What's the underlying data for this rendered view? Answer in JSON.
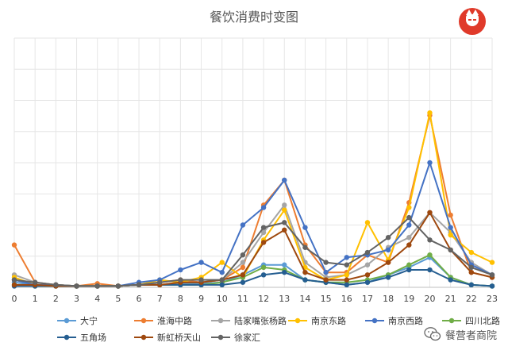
{
  "chart_data": {
    "type": "line",
    "title": "餐饮消费时变图",
    "x": [
      0,
      1,
      2,
      3,
      4,
      5,
      6,
      7,
      8,
      9,
      10,
      11,
      12,
      13,
      14,
      15,
      16,
      17,
      18,
      19,
      20,
      21,
      22,
      23
    ],
    "ylim": [
      0,
      100
    ],
    "grid": true,
    "legend_position": "bottom",
    "series": [
      {
        "name": "大宁",
        "color": "#5b9bd5",
        "values": [
          2,
          1,
          1,
          0.5,
          0.5,
          0.5,
          1,
          1,
          1.5,
          1.5,
          2,
          5,
          9,
          9,
          3,
          2,
          1,
          2,
          5,
          8,
          12,
          4,
          1,
          0.5
        ]
      },
      {
        "name": "淮海中路",
        "color": "#ed7d31",
        "values": [
          17,
          2,
          1,
          0.5,
          1.5,
          0.5,
          1,
          2,
          3,
          2,
          3,
          8,
          33,
          43,
          17,
          6,
          6,
          13,
          10,
          34,
          69,
          29,
          6,
          4
        ]
      },
      {
        "name": "陆家嘴张杨路",
        "color": "#a5a5a5",
        "values": [
          5,
          2,
          1,
          0.5,
          0.5,
          0.5,
          1,
          1,
          2,
          2,
          3,
          10,
          22,
          33,
          10,
          4,
          5,
          9,
          16,
          20,
          30,
          22,
          10,
          5
        ]
      },
      {
        "name": "南京东路",
        "color": "#ffc000",
        "values": [
          4,
          1,
          1,
          0.5,
          0.5,
          0.5,
          1,
          3,
          2,
          4,
          10,
          4,
          19,
          31,
          8,
          3,
          5,
          26,
          11,
          32,
          70,
          21,
          14,
          10
        ]
      },
      {
        "name": "南京西路",
        "color": "#4472c4",
        "values": [
          3,
          1,
          1,
          0.5,
          0.5,
          0.5,
          2,
          3,
          7,
          10,
          6,
          25,
          32,
          43,
          24,
          6,
          12,
          13,
          15,
          25,
          50,
          24,
          9,
          5
        ]
      },
      {
        "name": "四川北路",
        "color": "#70ad47",
        "values": [
          1,
          0.5,
          0.5,
          0.5,
          0.5,
          0.5,
          1,
          1,
          1,
          1,
          2,
          4,
          8,
          7,
          3,
          2,
          2,
          3,
          5,
          9,
          13,
          4,
          1,
          0.5
        ]
      },
      {
        "name": "五角场",
        "color": "#255e91",
        "values": [
          0.5,
          0.5,
          0.5,
          0.5,
          0.5,
          0.5,
          1,
          1,
          1,
          1,
          1,
          2,
          5,
          6,
          3,
          2,
          1,
          2,
          4,
          7,
          7,
          3,
          1,
          0.5
        ]
      },
      {
        "name": "新虹桥天山",
        "color": "#9e480e",
        "values": [
          1,
          1,
          0.5,
          0.5,
          0.5,
          0.5,
          1,
          1,
          2,
          2,
          3,
          5,
          18,
          23,
          6,
          3,
          3,
          5,
          10,
          17,
          30,
          15,
          6,
          4
        ]
      },
      {
        "name": "徐家汇",
        "color": "#636363",
        "values": [
          3,
          2,
          1,
          0.5,
          0.5,
          0.5,
          1,
          2,
          3,
          3,
          3,
          13,
          24,
          26,
          16,
          10,
          9,
          14,
          20,
          28,
          19,
          15,
          8,
          5
        ]
      }
    ]
  },
  "watermark": {
    "icon": "wechat-icon",
    "text": "餐营者商院"
  },
  "logo": {
    "icon": "fox-logo-icon",
    "color": "#e03a2a"
  }
}
